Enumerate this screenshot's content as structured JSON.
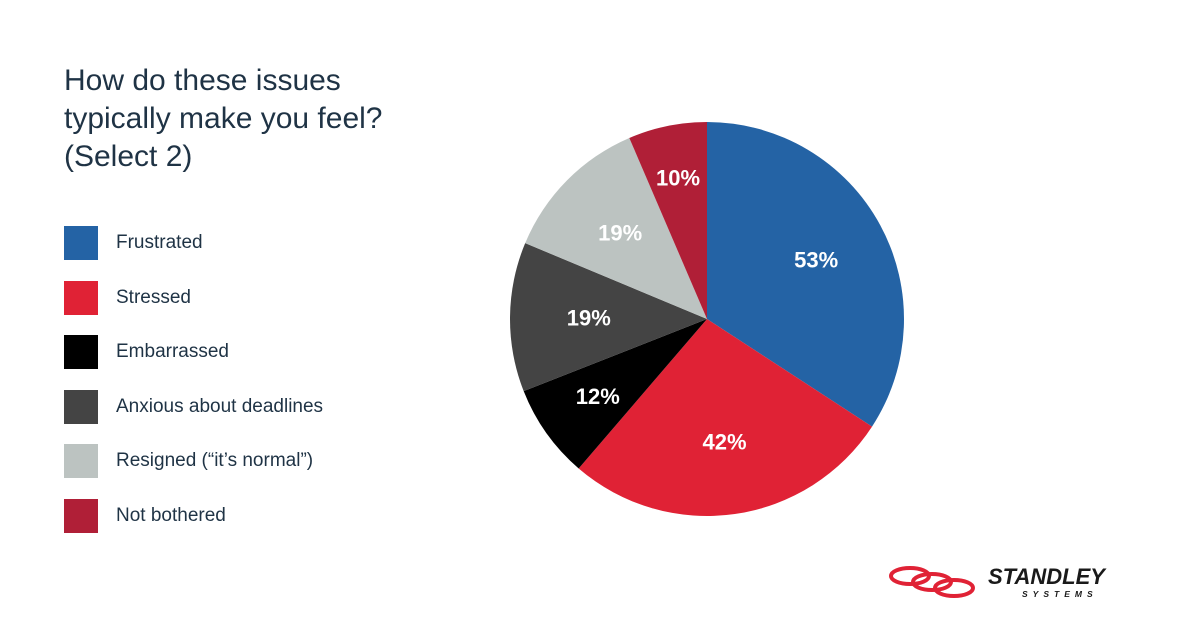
{
  "chart_data": {
    "type": "pie",
    "title": "How do these issues typically make you feel? (Select 2)",
    "categories": [
      "Frustrated",
      "Stressed",
      "Embarrassed",
      "Anxious about deadlines",
      "Resigned (“it’s normal”)",
      "Not bothered"
    ],
    "values": [
      53,
      42,
      12,
      19,
      19,
      10
    ],
    "labels": [
      "53%",
      "42%",
      "12%",
      "19%",
      "19%",
      "10%"
    ],
    "colors": [
      "#2463a5",
      "#e02235",
      "#000000",
      "#444444",
      "#bcc3c1",
      "#b01f37"
    ],
    "legend_position": "left"
  },
  "logo": {
    "name": "STANDLEY",
    "subtitle": "SYSTEMS"
  }
}
